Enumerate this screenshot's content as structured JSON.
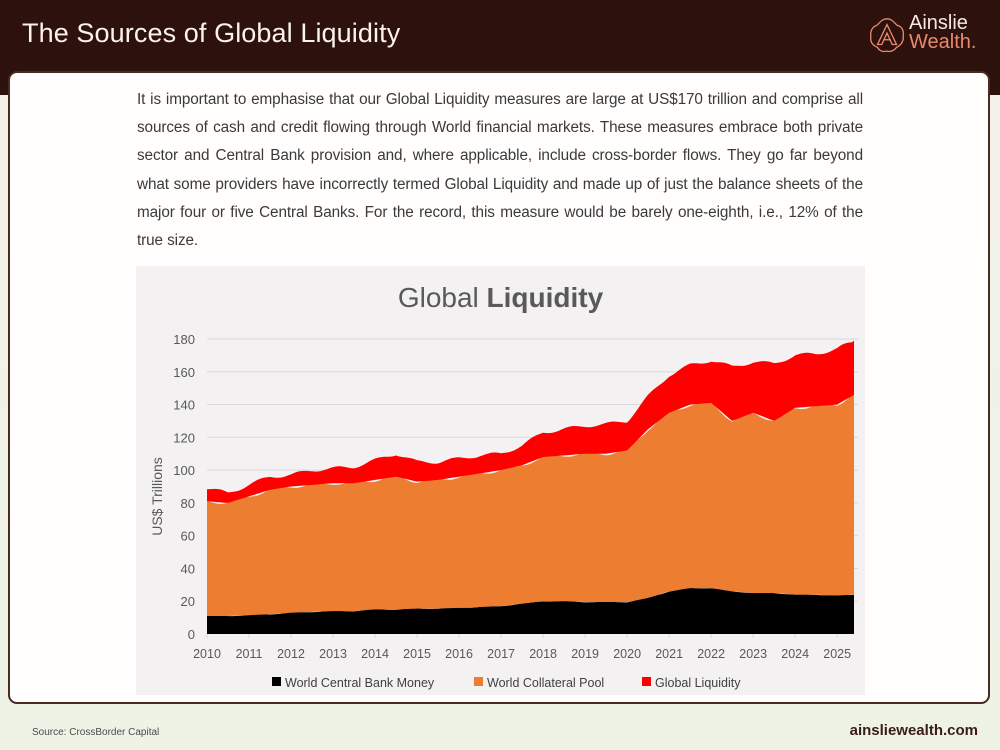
{
  "header": {
    "title": "The Sources of Global Liquidity",
    "logo": {
      "line1": "Ainslie",
      "line2": "Wealth",
      "dot": ".",
      "icon": "ainslie-a-logo-icon"
    }
  },
  "body": {
    "paragraph": "It is important to emphasise that our Global Liquidity measures are large at US$170 trillion and comprise all sources of cash and credit flowing through World financial markets. These measures embrace both private sector and Central Bank provision and, where applicable, include cross-border flows. They go far beyond what some providers have incorrectly termed Global Liquidity and made up of just the balance sheets of the major four or five Central Banks. For the record, this measure would be barely one-eighth, i.e., 12% of the true size."
  },
  "footer": {
    "source": "Source: CrossBorder Capital",
    "url": "ainsliewealth.com"
  },
  "colors": {
    "header_bg": "#2c110c",
    "central_bank": "#000000",
    "collateral": "#ed7d31",
    "global_liquidity": "#ff0000",
    "chart_bg": "#f3f1f1",
    "grid": "#d9d9d9"
  },
  "chart_data": {
    "type": "area",
    "stacked": true,
    "title": "Global Liquidity",
    "title_parts": {
      "regular": "Global ",
      "bold": "Liquidity"
    },
    "xlabel": "",
    "ylabel": "US$ Trillions",
    "ylim": [
      0,
      180
    ],
    "yticks": [
      0,
      20,
      40,
      60,
      80,
      100,
      120,
      140,
      160,
      180
    ],
    "xticks": [
      "2010",
      "2011",
      "2012",
      "2013",
      "2014",
      "2015",
      "2016",
      "2017",
      "2018",
      "2019",
      "2020",
      "2021",
      "2022",
      "2023",
      "2024",
      "2025"
    ],
    "grid": true,
    "legend_position": "bottom",
    "x": [
      2010.0,
      2010.5,
      2011.0,
      2011.5,
      2012.0,
      2012.5,
      2013.0,
      2013.5,
      2014.0,
      2014.5,
      2015.0,
      2015.5,
      2016.0,
      2016.5,
      2017.0,
      2017.5,
      2018.0,
      2018.5,
      2019.0,
      2019.5,
      2020.0,
      2020.5,
      2021.0,
      2021.5,
      2022.0,
      2022.5,
      2023.0,
      2023.5,
      2024.0,
      2024.5,
      2025.0,
      2025.4
    ],
    "series": [
      {
        "name": "World Central Bank Money",
        "color": "#000000",
        "values": [
          11,
          11,
          11.5,
          12,
          13,
          13.5,
          14,
          14,
          15,
          15,
          15.5,
          15.5,
          16,
          16.5,
          17,
          18.5,
          20,
          20,
          19.5,
          19.5,
          19.5,
          22,
          26,
          28,
          28,
          26,
          25,
          25,
          24,
          24,
          23.5,
          24
        ]
      },
      {
        "name": "World Collateral Pool",
        "color": "#ed7d31",
        "values": [
          70,
          69,
          72.5,
          76,
          77,
          77.5,
          78,
          78,
          79,
          81,
          77.5,
          78.5,
          80,
          81.5,
          83,
          84.5,
          88,
          89,
          90.5,
          90.5,
          92.5,
          103,
          109,
          112,
          113,
          104,
          110,
          105,
          114,
          115,
          116.5,
          122
        ]
      },
      {
        "name": "Global Liquidity",
        "color": "#ff0000",
        "values": [
          8,
          6,
          7,
          8,
          7,
          9,
          9,
          10,
          12,
          14,
          12,
          11,
          11,
          11,
          10,
          12,
          15,
          16,
          17,
          18,
          18,
          20,
          23,
          24,
          26,
          33,
          31,
          35,
          32,
          32,
          34,
          33
        ]
      }
    ],
    "totals_top_of_stack": [
      89,
      86,
      91,
      96,
      97,
      100,
      101,
      102,
      106,
      110,
      105,
      105,
      107,
      109,
      110,
      115,
      123,
      125,
      127,
      128,
      130,
      145,
      158,
      164,
      167,
      163,
      166,
      165,
      170,
      171,
      174,
      179
    ],
    "legend": [
      "World Central Bank Money",
      "World Collateral Pool",
      "Global Liquidity"
    ]
  }
}
